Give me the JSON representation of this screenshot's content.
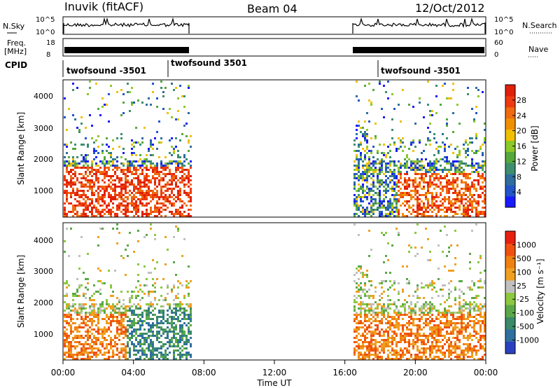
{
  "header": {
    "station": "Inuvik (fitACF)",
    "beam": "Beam 04",
    "date": "12/Oct/2012"
  },
  "panels": {
    "nsky": {
      "left_label": "N.Sky",
      "right_label": "N.Search",
      "left_ticks": [
        "10^5",
        "10^0"
      ],
      "right_ticks": [
        "10^5",
        "10^0"
      ]
    },
    "freq": {
      "left_label_1": "Freq.",
      "left_label_2": "[MHz]",
      "left_ticks": [
        "18",
        "8"
      ],
      "right_label": "Nave",
      "right_ticks": [
        "60",
        "0"
      ]
    },
    "cpid": {
      "label": "CPID",
      "segments": [
        "twofsound -3501",
        "twofsound 3501",
        "twofsound -3501"
      ]
    }
  },
  "chart_data": [
    {
      "type": "heatmap",
      "title": "Power",
      "ylabel": "Slant Range [km]",
      "ylim": [
        180,
        4600
      ],
      "yticks": [
        "4000",
        "3000",
        "2000",
        "1000"
      ],
      "colorbar_label": "Power [dB]",
      "colorbar_ticks": [
        "28",
        "24",
        "20",
        "16",
        "12",
        "8",
        "4"
      ],
      "colors": [
        "#1a1aff",
        "#2255c8",
        "#2f6e9c",
        "#3d8f6e",
        "#55a83c",
        "#8cc82a",
        "#f0c000",
        "#f09000",
        "#f06a10",
        "#ee3a10",
        "#e02008"
      ]
    },
    {
      "type": "heatmap",
      "title": "Velocity",
      "ylabel": "Slant Range [km]",
      "ylim": [
        180,
        4600
      ],
      "yticks": [
        "4000",
        "3000",
        "2000",
        "1000"
      ],
      "colorbar_label": "Velocity [m s⁻¹]",
      "colorbar_ticks": [
        "1000",
        "500",
        "100",
        "25",
        "-25",
        "-100",
        "-500",
        "-1000"
      ],
      "colors": [
        "#2a40c0",
        "#2f6fa0",
        "#3a8a6a",
        "#5aa848",
        "#8cc840",
        "#c0c0c0",
        "#f0a020",
        "#f08010",
        "#f05010",
        "#e82010"
      ]
    }
  ],
  "xaxis": {
    "label": "Time UT",
    "ticks": [
      "00:00",
      "04:00",
      "08:00",
      "12:00",
      "16:00",
      "20:00",
      "00:00"
    ]
  }
}
